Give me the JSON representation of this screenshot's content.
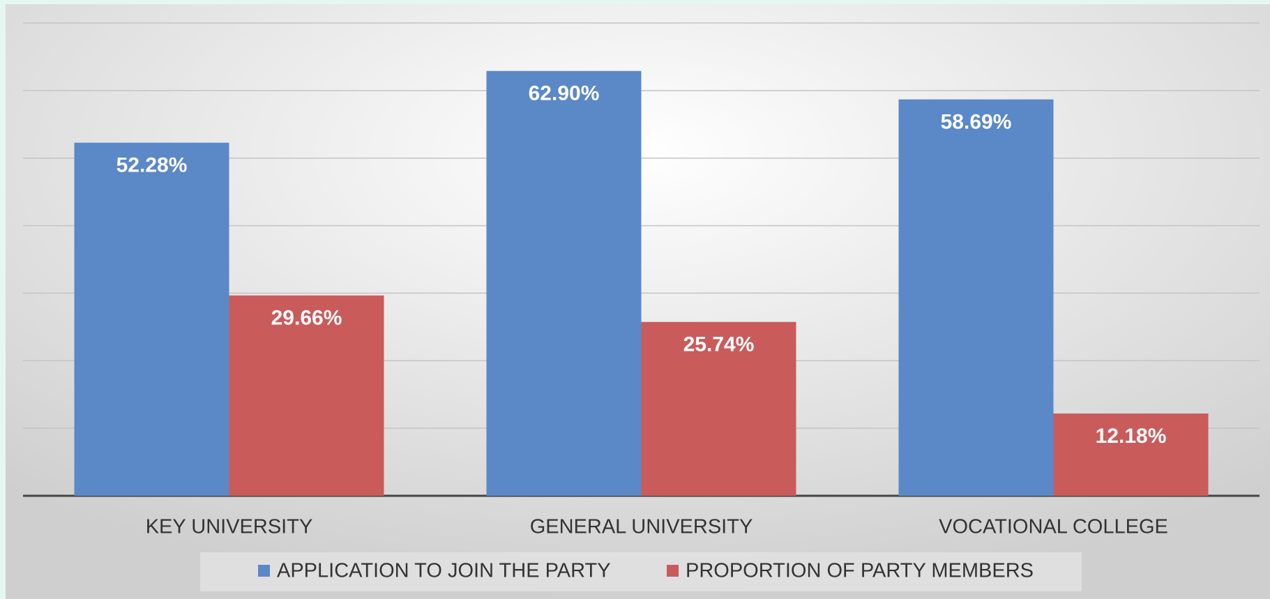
{
  "chart_data": {
    "type": "bar",
    "categories": [
      "KEY UNIVERSITY",
      "GENERAL UNIVERSITY",
      "VOCATIONAL COLLEGE"
    ],
    "series": [
      {
        "name": "APPLICATION TO JOIN THE PARTY",
        "color": "#5b88c6",
        "values": [
          52.28,
          62.9,
          58.69
        ],
        "value_labels": [
          "52.28%",
          "62.90%",
          "58.69%"
        ]
      },
      {
        "name": "PROPORTION OF PARTY MEMBERS",
        "color": "#c95b5b",
        "values": [
          29.66,
          25.74,
          12.18
        ],
        "value_labels": [
          "29.66%",
          "25.74%",
          "12.18%"
        ]
      }
    ],
    "ylim": [
      0,
      70
    ],
    "yticks": [
      0,
      10,
      20,
      30,
      40,
      50,
      60,
      70
    ],
    "grid": true,
    "legend": "bottom"
  }
}
